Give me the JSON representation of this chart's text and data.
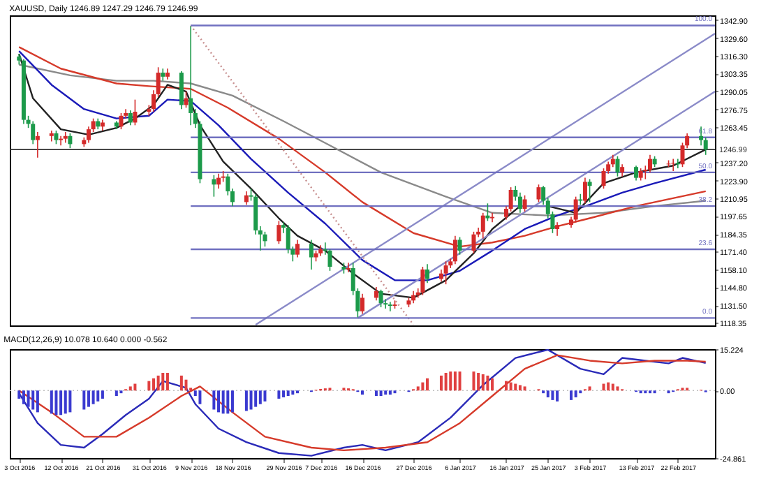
{
  "chart_data": [
    {
      "type": "candlestick",
      "title": "XAUUSD, Daily 1246.89 1247.29 1246.79 1246.99",
      "tick_labels": "y",
      "xlim": [
        "2016-10-01",
        "2017-03-02"
      ],
      "ylim": [
        1116.5,
        1346.5
      ],
      "yticks": [
        {
          "value": 1118.35,
          "label": "1118.35"
        },
        {
          "value": 1131.5,
          "label": "1131.50"
        },
        {
          "value": 1144.8,
          "label": "1144.80"
        },
        {
          "value": 1158.1,
          "label": "1158.10"
        },
        {
          "value": 1171.4,
          "label": "1171.40"
        },
        1184.35,
        1197.65,
        1210.95,
        {
          "value": 1223.9,
          "label": "1223.90"
        },
        {
          "value": 1237.2,
          "label": "1237.20"
        },
        1263.45,
        1276.75,
        1290.05,
        1303.35,
        {
          "value": 1316.3,
          "label": "1316.30"
        },
        {
          "value": 1329.6,
          "label": "1329.60"
        },
        {
          "value": 1342.9,
          "label": "1342.90"
        }
      ],
      "x": [
        "2016-10-03",
        "2016-10-04",
        "2016-10-05",
        "2016-10-06",
        "2016-10-07",
        "2016-10-10",
        "2016-10-11",
        "2016-10-12",
        "2016-10-13",
        "2016-10-14",
        "2016-10-17",
        "2016-10-18",
        "2016-10-19",
        "2016-10-20",
        "2016-10-21",
        "2016-10-24",
        "2016-10-25",
        "2016-10-26",
        "2016-10-27",
        "2016-10-28",
        "2016-10-31",
        "2016-11-01",
        "2016-11-02",
        "2016-11-03",
        "2016-11-04",
        "2016-11-07",
        "2016-11-08",
        "2016-11-09",
        "2016-11-10",
        "2016-11-11",
        "2016-11-14",
        "2016-11-15",
        "2016-11-16",
        "2016-11-17",
        "2016-11-18",
        "2016-11-21",
        "2016-11-22",
        "2016-11-23",
        "2016-11-24",
        "2016-11-25",
        "2016-11-28",
        "2016-11-29",
        "2016-11-30",
        "2016-12-01",
        "2016-12-02",
        "2016-12-05",
        "2016-12-06",
        "2016-12-07",
        "2016-12-08",
        "2016-12-09",
        "2016-12-12",
        "2016-12-13",
        "2016-12-14",
        "2016-12-15",
        "2016-12-16",
        "2016-12-19",
        "2016-12-20",
        "2016-12-21",
        "2016-12-22",
        "2016-12-23",
        "2016-12-26",
        "2016-12-27",
        "2016-12-28",
        "2016-12-29",
        "2016-12-30",
        "2017-01-02",
        "2017-01-03",
        "2017-01-04",
        "2017-01-05",
        "2017-01-06",
        "2017-01-09",
        "2017-01-10",
        "2017-01-11",
        "2017-01-12",
        "2017-01-13",
        "2017-01-16",
        "2017-01-17",
        "2017-01-18",
        "2017-01-19",
        "2017-01-20",
        "2017-01-23",
        "2017-01-24",
        "2017-01-25",
        "2017-01-26",
        "2017-01-27",
        "2017-01-30",
        "2017-01-31",
        "2017-02-01",
        "2017-02-02",
        "2017-02-03",
        "2017-02-06",
        "2017-02-07",
        "2017-02-08",
        "2017-02-09",
        "2017-02-10",
        "2017-02-13",
        "2017-02-14",
        "2017-02-15",
        "2017-02-16",
        "2017-02-17",
        "2017-02-20",
        "2017-02-21",
        "2017-02-22",
        "2017-02-23",
        "2017-02-24",
        "2017-02-27",
        "2017-02-28"
      ],
      "ohlc": [
        [
          1316,
          1318,
          1310,
          1313
        ],
        [
          1313,
          1314,
          1266,
          1269
        ],
        [
          1269,
          1272,
          1263,
          1266
        ],
        [
          1266,
          1268,
          1251,
          1254
        ],
        [
          1254,
          1260,
          1241,
          1257
        ],
        [
          1257,
          1261,
          1253,
          1259
        ],
        [
          1259,
          1261,
          1251,
          1254
        ],
        [
          1254,
          1257,
          1250,
          1255
        ],
        [
          1255,
          1260,
          1252,
          1257
        ],
        [
          1257,
          1259,
          1248,
          1251
        ],
        [
          1251,
          1256,
          1249,
          1254
        ],
        [
          1254,
          1264,
          1252,
          1262
        ],
        [
          1262,
          1270,
          1260,
          1268
        ],
        [
          1268,
          1270,
          1262,
          1264
        ],
        [
          1264,
          1269,
          1261,
          1267
        ],
        [
          1267,
          1268,
          1262,
          1264
        ],
        [
          1264,
          1274,
          1262,
          1272
        ],
        [
          1272,
          1277,
          1270,
          1274
        ],
        [
          1274,
          1276,
          1265,
          1267
        ],
        [
          1267,
          1284,
          1265,
          1275
        ],
        [
          1275,
          1280,
          1272,
          1277
        ],
        [
          1277,
          1291,
          1275,
          1288
        ],
        [
          1288,
          1308,
          1286,
          1304
        ],
        [
          1304,
          1307,
          1298,
          1301
        ],
        [
          1301,
          1307,
          1299,
          1304
        ],
        [
          1304,
          1305,
          1277,
          1280
        ],
        [
          1280,
          1290,
          1278,
          1285
        ],
        [
          1285,
          1338.5,
          1265,
          1274
        ],
        [
          1274,
          1277,
          1263,
          1266
        ],
        [
          1266,
          1268,
          1222,
          1225
        ],
        [
          1225,
          1228,
          1212,
          1221
        ],
        [
          1221,
          1229,
          1218,
          1226
        ],
        [
          1226,
          1231,
          1223,
          1227
        ],
        [
          1227,
          1229,
          1213,
          1216
        ],
        [
          1216,
          1218,
          1205,
          1208
        ],
        [
          1208,
          1216,
          1206,
          1213
        ],
        [
          1213,
          1218,
          1209,
          1212
        ],
        [
          1212,
          1214,
          1184,
          1187
        ],
        [
          1187,
          1190,
          1172,
          1184
        ],
        [
          1184,
          1186,
          1175,
          1179
        ],
        [
          1179,
          1194,
          1177,
          1191
        ],
        [
          1191,
          1193,
          1185,
          1189
        ],
        [
          1189,
          1191,
          1170,
          1173
        ],
        [
          1173,
          1175,
          1164,
          1169
        ],
        [
          1169,
          1180,
          1167,
          1177
        ],
        [
          1177,
          1180,
          1158,
          1167
        ],
        [
          1167,
          1172,
          1164,
          1170
        ],
        [
          1170,
          1176,
          1168,
          1173
        ],
        [
          1173,
          1178,
          1169,
          1172
        ],
        [
          1172,
          1173,
          1157,
          1160
        ],
        [
          1160,
          1163,
          1155,
          1158
        ],
        [
          1158,
          1163,
          1156,
          1159
        ],
        [
          1159,
          1163,
          1139,
          1142
        ],
        [
          1142,
          1144,
          1122.5,
          1127
        ],
        [
          1127,
          1140,
          1125,
          1137
        ],
        [
          1137,
          1145,
          1135,
          1142
        ],
        [
          1142,
          1143,
          1130,
          1133
        ],
        [
          1133,
          1136,
          1129,
          1132
        ],
        [
          1132,
          1134,
          1127,
          1131
        ],
        [
          1131,
          1135,
          1129,
          1132
        ],
        [
          1132,
          1137,
          1130,
          1135
        ],
        [
          1135,
          1142,
          1133,
          1139
        ],
        [
          1139,
          1144,
          1137,
          1141
        ],
        [
          1141,
          1160,
          1139,
          1158
        ],
        [
          1158,
          1162,
          1148,
          1151
        ],
        [
          1151,
          1158,
          1149,
          1155
        ],
        [
          1155,
          1164,
          1147,
          1161
        ],
        [
          1161,
          1166,
          1159,
          1164
        ],
        [
          1164,
          1183,
          1162,
          1180
        ],
        [
          1180,
          1182,
          1169,
          1172
        ],
        [
          1172,
          1186,
          1170,
          1184
        ],
        [
          1184,
          1189,
          1182,
          1186
        ],
        [
          1186,
          1200,
          1181,
          1198
        ],
        [
          1198,
          1207,
          1194,
          1196
        ],
        [
          1196,
          1200,
          1193,
          1197
        ],
        [
          1197,
          1205,
          1195,
          1203
        ],
        [
          1203,
          1219,
          1201,
          1217
        ],
        [
          1217,
          1220,
          1209,
          1212
        ],
        [
          1212,
          1215,
          1200,
          1203
        ],
        [
          1203,
          1213,
          1201,
          1210
        ],
        [
          1210,
          1221,
          1208,
          1219
        ],
        [
          1219,
          1220,
          1206,
          1209
        ],
        [
          1209,
          1211,
          1196,
          1199
        ],
        [
          1199,
          1201,
          1185,
          1188
        ],
        [
          1188,
          1193,
          1183,
          1191
        ],
        [
          1191,
          1197,
          1189,
          1195
        ],
        [
          1195,
          1212,
          1193,
          1210
        ],
        [
          1210,
          1214,
          1206,
          1209
        ],
        [
          1209,
          1226,
          1207,
          1223
        ],
        [
          1223,
          1225,
          1208,
          1220
        ],
        [
          1220,
          1233,
          1218,
          1231
        ],
        [
          1231,
          1238,
          1229,
          1236
        ],
        [
          1236,
          1243,
          1234,
          1240
        ],
        [
          1240,
          1242,
          1227,
          1230
        ],
        [
          1230,
          1236,
          1227,
          1234
        ],
        [
          1234,
          1235,
          1224,
          1226
        ],
        [
          1226,
          1233,
          1224,
          1231
        ],
        [
          1231,
          1235,
          1225,
          1232
        ],
        [
          1232,
          1243,
          1230,
          1240
        ],
        [
          1240,
          1242,
          1234,
          1236
        ],
        [
          1236,
          1239,
          1234,
          1236.5
        ],
        [
          1236.5,
          1240,
          1231,
          1237
        ],
        [
          1237,
          1240,
          1233,
          1236
        ],
        [
          1236,
          1252,
          1234,
          1250
        ],
        [
          1250,
          1259,
          1248,
          1257
        ],
        [
          1257,
          1264,
          1250,
          1254
        ],
        [
          1254,
          1256,
          1243,
          1246.99
        ]
      ],
      "colors": [
        "#1c9a4a",
        "#1c9a4a",
        "#1c9a4a",
        "#1c9a4a",
        "#d42a2a",
        "#d42a2a",
        "#1c9a4a",
        "#d42a2a",
        "#d42a2a",
        "#1c9a4a",
        "#d42a2a",
        "#d42a2a",
        "#d42a2a",
        "#1c9a4a",
        "#d42a2a",
        "#1c9a4a",
        "#d42a2a",
        "#d42a2a",
        "#1c9a4a",
        "#d42a2a",
        "#d42a2a",
        "#d42a2a",
        "#d42a2a",
        "#1c9a4a",
        "#d42a2a",
        "#1c9a4a",
        "#d42a2a",
        "#1c9a4a",
        "#1c9a4a",
        "#1c9a4a",
        "#1c9a4a",
        "#d42a2a",
        "#d42a2a",
        "#1c9a4a",
        "#1c9a4a",
        "#d42a2a",
        "#1c9a4a",
        "#1c9a4a",
        "#1c9a4a",
        "#1c9a4a",
        "#d42a2a",
        "#1c9a4a",
        "#1c9a4a",
        "#1c9a4a",
        "#d42a2a",
        "#1c9a4a",
        "#d42a2a",
        "#d42a2a",
        "#1c9a4a",
        "#1c9a4a",
        "#1c9a4a",
        "#d42a2a",
        "#1c9a4a",
        "#1c9a4a",
        "#d42a2a",
        "#d42a2a",
        "#1c9a4a",
        "#1c9a4a",
        "#1c9a4a",
        "#d42a2a",
        "#d42a2a",
        "#d42a2a",
        "#d42a2a",
        "#d42a2a",
        "#1c9a4a",
        "#d42a2a",
        "#d42a2a",
        "#d42a2a",
        "#d42a2a",
        "#1c9a4a",
        "#d42a2a",
        "#d42a2a",
        "#d42a2a",
        "#1c9a4a",
        "#d42a2a",
        "#d42a2a",
        "#d42a2a",
        "#1c9a4a",
        "#1c9a4a",
        "#d42a2a",
        "#d42a2a",
        "#1c9a4a",
        "#1c9a4a",
        "#1c9a4a",
        "#d42a2a",
        "#d42a2a",
        "#d42a2a",
        "#1c9a4a",
        "#d42a2a",
        "#1c9a4a",
        "#d42a2a",
        "#d42a2a",
        "#d42a2a",
        "#1c9a4a",
        "#d42a2a",
        "#1c9a4a",
        "#d42a2a",
        "#d42a2a",
        "#d42a2a",
        "#1c9a4a",
        "#d42a2a",
        "#d42a2a",
        "#1c9a4a",
        "#d42a2a",
        "#d42a2a",
        "#1c9a4a",
        "#1c9a4a"
      ],
      "series": [
        {
          "type": "line",
          "color": "#8a8a8a",
          "x": [
            "2016-10-03",
            "2016-10-14",
            "2016-10-24",
            "2016-11-01",
            "2016-11-09",
            "2016-11-18",
            "2016-11-29",
            "2016-12-09",
            "2016-12-20",
            "2017-01-03",
            "2017-01-13",
            "2017-01-25",
            "2017-02-06",
            "2017-02-17",
            "2017-02-28"
          ],
          "values": [
            1310,
            1302,
            1298,
            1298,
            1296,
            1287,
            1268,
            1250,
            1230,
            1212,
            1200,
            1198,
            1200,
            1205,
            1209
          ]
        },
        {
          "type": "line",
          "color": "#d63a2a",
          "x": [
            "2016-10-03",
            "2016-10-12",
            "2016-10-24",
            "2016-10-31",
            "2016-11-09",
            "2016-11-17",
            "2016-11-28",
            "2016-12-08",
            "2016-12-16",
            "2016-12-27",
            "2017-01-06",
            "2017-01-13",
            "2017-01-20",
            "2017-01-27",
            "2017-02-03",
            "2017-02-13",
            "2017-02-28"
          ],
          "values": [
            1323,
            1307,
            1296,
            1294,
            1292,
            1278,
            1255,
            1230,
            1208,
            1185,
            1175,
            1178,
            1183,
            1190,
            1196,
            1205,
            1216
          ]
        },
        {
          "type": "line",
          "color": "#1a1ab8",
          "x": [
            "2016-10-03",
            "2016-10-10",
            "2016-10-17",
            "2016-10-24",
            "2016-10-31",
            "2016-11-04",
            "2016-11-09",
            "2016-11-15",
            "2016-11-22",
            "2016-11-30",
            "2016-12-08",
            "2016-12-16",
            "2016-12-23",
            "2016-12-30",
            "2017-01-06",
            "2017-01-13",
            "2017-01-20",
            "2017-01-27",
            "2017-02-03",
            "2017-02-10",
            "2017-02-17",
            "2017-02-28"
          ],
          "values": [
            1320,
            1295,
            1277,
            1270,
            1272,
            1284,
            1283,
            1265,
            1240,
            1215,
            1192,
            1165,
            1150,
            1150,
            1157,
            1172,
            1188,
            1198,
            1206,
            1215,
            1222,
            1232
          ]
        },
        {
          "type": "line",
          "color": "#222222",
          "x": [
            "2016-10-03",
            "2016-10-06",
            "2016-10-12",
            "2016-10-18",
            "2016-10-24",
            "2016-10-28",
            "2016-11-01",
            "2016-11-04",
            "2016-11-08",
            "2016-11-11",
            "2016-11-16",
            "2016-11-22",
            "2016-11-28",
            "2016-12-02",
            "2016-12-08",
            "2016-12-14",
            "2016-12-20",
            "2016-12-27",
            "2017-01-03",
            "2017-01-09",
            "2017-01-13",
            "2017-01-19",
            "2017-01-25",
            "2017-01-31",
            "2017-02-06",
            "2017-02-13",
            "2017-02-21",
            "2017-02-28"
          ],
          "values": [
            1318,
            1285,
            1262,
            1258,
            1263,
            1270,
            1280,
            1295,
            1290,
            1265,
            1238,
            1218,
            1196,
            1183,
            1172,
            1155,
            1140,
            1137,
            1150,
            1170,
            1188,
            1205,
            1205,
            1200,
            1222,
            1230,
            1235,
            1247
          ]
        },
        {
          "type": "line",
          "color": "#8a8ac8",
          "x": [
            "2016-11-23",
            "2017-03-02"
          ],
          "values": [
            1117,
            1333
          ]
        },
        {
          "type": "line",
          "color": "#8a8ac8",
          "x": [
            "2016-12-15",
            "2017-03-02"
          ],
          "values": [
            1122,
            1290
          ]
        },
        {
          "type": "line",
          "color": "#c89090",
          "line_style": "dotted",
          "x": [
            "2016-11-09",
            "2016-12-27"
          ],
          "values": [
            1339,
            1117
          ]
        },
        {
          "type": "line",
          "name": "100.0",
          "color": "#7070c0",
          "x": [
            "2016-11-09",
            "2017-03-02"
          ],
          "values": [
            1339,
            1339
          ]
        },
        {
          "type": "line",
          "name": "61.8",
          "color": "#7070c0",
          "x": [
            "2016-11-09",
            "2017-03-02"
          ],
          "values": [
            1256,
            1256
          ]
        },
        {
          "type": "line",
          "name": "50.0",
          "color": "#7070c0",
          "x": [
            "2016-11-09",
            "2017-03-02"
          ],
          "values": [
            1230,
            1230
          ]
        },
        {
          "type": "line",
          "name": "38.2",
          "color": "#7070c0",
          "x": [
            "2016-11-09",
            "2017-03-02"
          ],
          "values": [
            1205,
            1205
          ]
        },
        {
          "type": "line",
          "name": "23.6",
          "color": "#7070c0",
          "x": [
            "2016-11-09",
            "2017-03-02"
          ],
          "values": [
            1173,
            1173
          ]
        },
        {
          "type": "line",
          "name": "0.0",
          "color": "#7070c0",
          "x": [
            "2016-11-09",
            "2017-03-02"
          ],
          "values": [
            1122,
            1122
          ]
        }
      ],
      "ref_lines": [
        {
          "axis": "y",
          "value": 1246.99,
          "label": "1246.99",
          "color": "#333333"
        }
      ]
    },
    {
      "type": "bar",
      "title": "MACD(12,26,9) 10.078 10.640 0.000 -0.562",
      "xlim": [
        "2016-10-01",
        "2017-03-02"
      ],
      "ylim": [
        -24.861,
        15.224
      ],
      "yticks": [
        15.224,
        {
          "value": 0,
          "label": "0.00"
        },
        -24.861
      ],
      "xticks": [
        {
          "value": "2016-10-03",
          "label": "3 Oct 2016"
        },
        {
          "value": "2016-10-12",
          "label": "12 Oct 2016"
        },
        {
          "value": "2016-10-21",
          "label": "21 Oct 2016"
        },
        {
          "value": "2016-10-31",
          "label": "31 Oct 2016"
        },
        {
          "value": "2016-11-09",
          "label": "9 Nov 2016"
        },
        {
          "value": "2016-11-18",
          "label": "18 Nov 2016"
        },
        {
          "value": "2016-11-29",
          "label": "29 Nov 2016"
        },
        {
          "value": "2016-12-07",
          "label": "7 Dec 2016"
        },
        {
          "value": "2016-12-16",
          "label": "16 Dec 2016"
        },
        {
          "value": "2016-12-27",
          "label": "27 Dec 2016"
        },
        {
          "value": "2017-01-06",
          "label": "6 Jan 2017"
        },
        {
          "value": "2017-01-16",
          "label": "16 Jan 2017"
        },
        {
          "value": "2017-01-25",
          "label": "25 Jan 2017"
        },
        {
          "value": "2017-02-03",
          "label": "3 Feb 2017"
        },
        {
          "value": "2017-02-13",
          "label": "13 Feb 2017"
        },
        {
          "value": "2017-02-22",
          "label": "22 Feb 2017"
        }
      ],
      "x": [
        "2016-10-03",
        "2016-10-04",
        "2016-10-05",
        "2016-10-06",
        "2016-10-07",
        "2016-10-10",
        "2016-10-11",
        "2016-10-12",
        "2016-10-13",
        "2016-10-14",
        "2016-10-17",
        "2016-10-18",
        "2016-10-19",
        "2016-10-20",
        "2016-10-21",
        "2016-10-24",
        "2016-10-25",
        "2016-10-26",
        "2016-10-27",
        "2016-10-28",
        "2016-10-31",
        "2016-11-01",
        "2016-11-02",
        "2016-11-03",
        "2016-11-04",
        "2016-11-07",
        "2016-11-08",
        "2016-11-09",
        "2016-11-10",
        "2016-11-11",
        "2016-11-14",
        "2016-11-15",
        "2016-11-16",
        "2016-11-17",
        "2016-11-18",
        "2016-11-21",
        "2016-11-22",
        "2016-11-23",
        "2016-11-24",
        "2016-11-25",
        "2016-11-28",
        "2016-11-29",
        "2016-11-30",
        "2016-12-01",
        "2016-12-02",
        "2016-12-05",
        "2016-12-06",
        "2016-12-07",
        "2016-12-08",
        "2016-12-09",
        "2016-12-12",
        "2016-12-13",
        "2016-12-14",
        "2016-12-15",
        "2016-12-16",
        "2016-12-19",
        "2016-12-20",
        "2016-12-21",
        "2016-12-22",
        "2016-12-23",
        "2016-12-26",
        "2016-12-27",
        "2016-12-28",
        "2016-12-29",
        "2016-12-30",
        "2017-01-02",
        "2017-01-03",
        "2017-01-04",
        "2017-01-05",
        "2017-01-06",
        "2017-01-09",
        "2017-01-10",
        "2017-01-11",
        "2017-01-12",
        "2017-01-13",
        "2017-01-16",
        "2017-01-17",
        "2017-01-18",
        "2017-01-19",
        "2017-01-20",
        "2017-01-23",
        "2017-01-24",
        "2017-01-25",
        "2017-01-26",
        "2017-01-27",
        "2017-01-30",
        "2017-01-31",
        "2017-02-01",
        "2017-02-02",
        "2017-02-03",
        "2017-02-06",
        "2017-02-07",
        "2017-02-08",
        "2017-02-09",
        "2017-02-10",
        "2017-02-13",
        "2017-02-14",
        "2017-02-15",
        "2017-02-16",
        "2017-02-17",
        "2017-02-20",
        "2017-02-21",
        "2017-02-22",
        "2017-02-23",
        "2017-02-24",
        "2017-02-27",
        "2017-02-28"
      ],
      "values": [
        -3,
        -5,
        -6,
        -7,
        -8,
        -8.5,
        -9,
        -9,
        -8.5,
        -8,
        -7,
        -6,
        -5,
        -4,
        -3,
        -2,
        -1,
        0.5,
        1.5,
        2.5,
        3.5,
        4.5,
        5.5,
        6.5,
        6.5,
        5.5,
        4,
        1,
        -2,
        -5,
        -7,
        -8,
        -8.5,
        -8.5,
        -8,
        -7.5,
        -7,
        -6,
        -5,
        -4,
        -3,
        -2.5,
        -2,
        -1.5,
        -1,
        -0.5,
        0.3,
        0.6,
        0.8,
        1,
        1,
        0.8,
        0.5,
        -0.5,
        -1.5,
        -2,
        -2,
        -1.5,
        -1.5,
        -1,
        -0.5,
        0.5,
        1.5,
        3,
        4.5,
        5.5,
        6.5,
        7,
        7,
        7,
        7,
        6.5,
        6,
        5.5,
        4.5,
        3.5,
        3,
        2.5,
        2,
        1.5,
        0.5,
        -1,
        -2.5,
        -3.5,
        -4,
        -3.5,
        -2.5,
        -1,
        0.5,
        1.5,
        2.5,
        3,
        2.5,
        1.5,
        0.5,
        -0.5,
        -1,
        -1,
        -1,
        -1,
        -1,
        -0.5,
        0.5,
        1,
        1,
        0.3,
        -0.6
      ],
      "colors": [
        "#3a3ad0",
        "#3a3ad0",
        "#3a3ad0",
        "#3a3ad0",
        "#3a3ad0",
        "#3a3ad0",
        "#3a3ad0",
        "#3a3ad0",
        "#3a3ad0",
        "#3a3ad0",
        "#3a3ad0",
        "#3a3ad0",
        "#3a3ad0",
        "#3a3ad0",
        "#3a3ad0",
        "#3a3ad0",
        "#3a3ad0",
        "#e04040",
        "#e04040",
        "#e04040",
        "#e04040",
        "#e04040",
        "#e04040",
        "#e04040",
        "#e04040",
        "#e04040",
        "#e04040",
        "#e04040",
        "#3a3ad0",
        "#3a3ad0",
        "#3a3ad0",
        "#3a3ad0",
        "#3a3ad0",
        "#3a3ad0",
        "#3a3ad0",
        "#3a3ad0",
        "#3a3ad0",
        "#3a3ad0",
        "#3a3ad0",
        "#3a3ad0",
        "#3a3ad0",
        "#3a3ad0",
        "#3a3ad0",
        "#3a3ad0",
        "#3a3ad0",
        "#3a3ad0",
        "#e04040",
        "#e04040",
        "#e04040",
        "#e04040",
        "#e04040",
        "#e04040",
        "#e04040",
        "#3a3ad0",
        "#3a3ad0",
        "#3a3ad0",
        "#3a3ad0",
        "#3a3ad0",
        "#3a3ad0",
        "#3a3ad0",
        "#3a3ad0",
        "#e04040",
        "#e04040",
        "#e04040",
        "#e04040",
        "#e04040",
        "#e04040",
        "#e04040",
        "#e04040",
        "#e04040",
        "#e04040",
        "#e04040",
        "#e04040",
        "#e04040",
        "#e04040",
        "#e04040",
        "#e04040",
        "#e04040",
        "#e04040",
        "#e04040",
        "#e04040",
        "#3a3ad0",
        "#3a3ad0",
        "#3a3ad0",
        "#3a3ad0",
        "#3a3ad0",
        "#3a3ad0",
        "#3a3ad0",
        "#e04040",
        "#e04040",
        "#e04040",
        "#e04040",
        "#e04040",
        "#e04040",
        "#e04040",
        "#3a3ad0",
        "#3a3ad0",
        "#3a3ad0",
        "#3a3ad0",
        "#3a3ad0",
        "#3a3ad0",
        "#3a3ad0",
        "#e04040",
        "#e04040",
        "#e04040",
        "#e04040",
        "#3a3ad0"
      ],
      "series": [
        {
          "type": "line",
          "color": "#2a2ab8",
          "x": [
            "2016-10-03",
            "2016-10-07",
            "2016-10-12",
            "2016-10-17",
            "2016-10-21",
            "2016-10-26",
            "2016-10-31",
            "2016-11-03",
            "2016-11-08",
            "2016-11-10",
            "2016-11-15",
            "2016-11-21",
            "2016-11-28",
            "2016-12-05",
            "2016-12-12",
            "2016-12-16",
            "2016-12-21",
            "2016-12-28",
            "2017-01-04",
            "2017-01-11",
            "2017-01-18",
            "2017-01-25",
            "2017-02-01",
            "2017-02-06",
            "2017-02-10",
            "2017-02-15",
            "2017-02-20",
            "2017-02-23",
            "2017-02-28"
          ],
          "values": [
            -1,
            -12,
            -20,
            -21,
            -16,
            -9,
            -3,
            3.5,
            1,
            -5,
            -14,
            -19,
            -23,
            -24,
            -21,
            -20,
            -22,
            -19,
            -10,
            2,
            12,
            15,
            8,
            6,
            12,
            11,
            10,
            12,
            10.1
          ]
        },
        {
          "type": "line",
          "color": "#d63a2a",
          "x": [
            "2016-10-03",
            "2016-10-10",
            "2016-10-17",
            "2016-10-24",
            "2016-10-31",
            "2016-11-07",
            "2016-11-11",
            "2016-11-18",
            "2016-11-25",
            "2016-12-05",
            "2016-12-12",
            "2016-12-21",
            "2016-12-30",
            "2017-01-06",
            "2017-01-13",
            "2017-01-20",
            "2017-01-27",
            "2017-02-03",
            "2017-02-10",
            "2017-02-17",
            "2017-02-24",
            "2017-02-28"
          ],
          "values": [
            0,
            -8,
            -17,
            -17,
            -10,
            -2,
            1.5,
            -8,
            -17,
            -21,
            -22,
            -21,
            -19,
            -12,
            -2,
            8,
            13,
            11,
            10,
            11,
            11,
            10.6
          ]
        }
      ],
      "ref_lines": [
        {
          "axis": "y",
          "value": 0,
          "color": "#c0c0c0",
          "line_style": "dotted"
        }
      ]
    }
  ]
}
